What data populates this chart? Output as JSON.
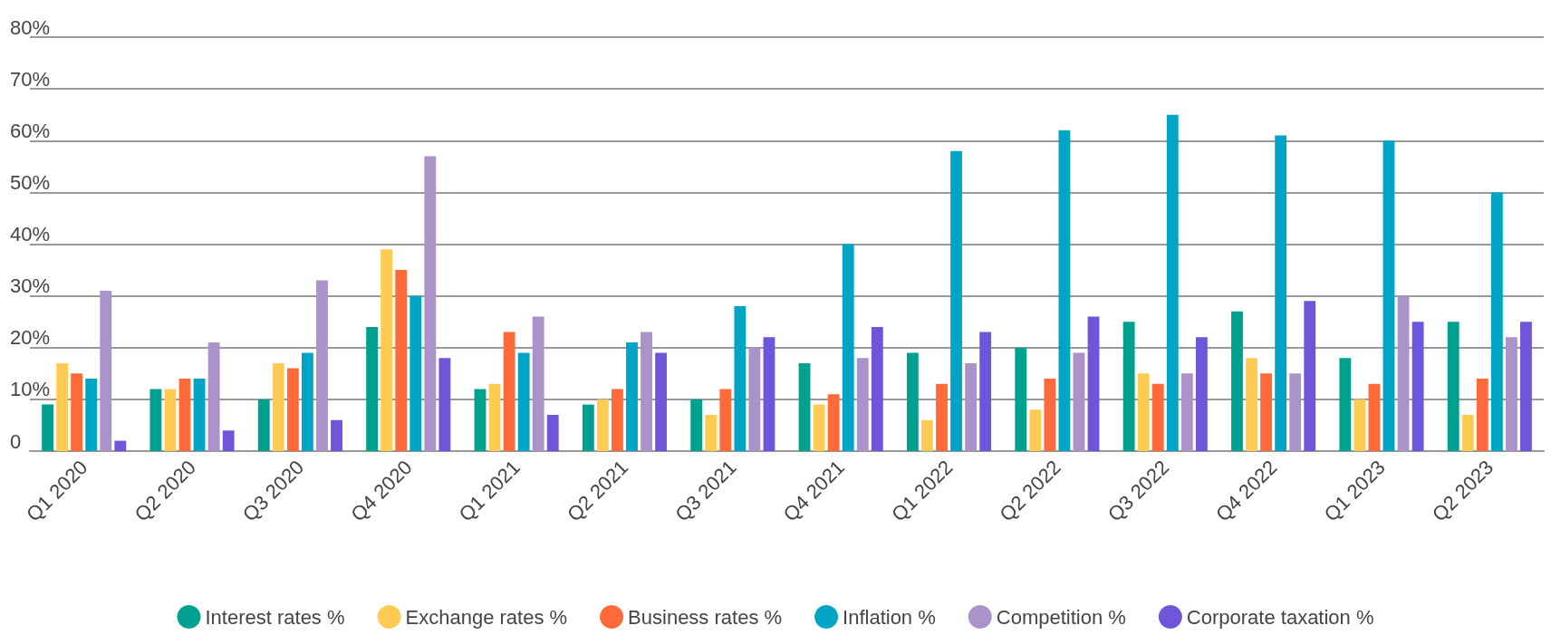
{
  "chart_data": {
    "type": "bar",
    "categories": [
      "Q1 2020",
      "Q2 2020",
      "Q3 2020",
      "Q4 2020",
      "Q1 2021",
      "Q2 2021",
      "Q3 2021",
      "Q4 2021",
      "Q1 2022",
      "Q2 2022",
      "Q3 2022",
      "Q4 2022",
      "Q1 2023",
      "Q2 2023"
    ],
    "series": [
      {
        "name": "Interest rates %",
        "color": "#00a08e",
        "values": [
          9,
          12,
          10,
          24,
          12,
          9,
          10,
          17,
          19,
          20,
          25,
          27,
          18,
          25
        ]
      },
      {
        "name": "Exchange rates %",
        "color": "#ffcb52",
        "values": [
          17,
          12,
          17,
          39,
          13,
          10,
          7,
          9,
          6,
          8,
          15,
          18,
          10,
          7
        ]
      },
      {
        "name": "Business rates %",
        "color": "#ff6a3a",
        "values": [
          15,
          14,
          16,
          35,
          23,
          12,
          12,
          11,
          13,
          14,
          13,
          15,
          13,
          14
        ]
      },
      {
        "name": "Inflation %",
        "color": "#00a4c4",
        "values": [
          14,
          14,
          19,
          30,
          19,
          21,
          28,
          40,
          58,
          62,
          65,
          61,
          60,
          50
        ]
      },
      {
        "name": "Competition %",
        "color": "#ab92c8",
        "values": [
          31,
          21,
          33,
          57,
          26,
          23,
          20,
          18,
          17,
          19,
          15,
          15,
          30,
          22
        ]
      },
      {
        "name": "Corporate taxation %",
        "color": "#6e55d9",
        "values": [
          2,
          4,
          6,
          18,
          7,
          19,
          22,
          24,
          23,
          26,
          22,
          29,
          25,
          25
        ]
      }
    ],
    "ylim": [
      0,
      80
    ],
    "yticks": [
      0,
      {
        "value": 10,
        "label": "10%"
      },
      {
        "value": 20,
        "label": "20%"
      },
      {
        "value": 30,
        "label": "30%"
      },
      {
        "value": 40,
        "label": "40%"
      },
      {
        "value": 50,
        "label": "50%"
      },
      {
        "value": 60,
        "label": "60%"
      },
      {
        "value": 70,
        "label": "70%"
      },
      {
        "value": 80,
        "label": "80%"
      }
    ],
    "grid": "y",
    "legend": "bottom"
  }
}
